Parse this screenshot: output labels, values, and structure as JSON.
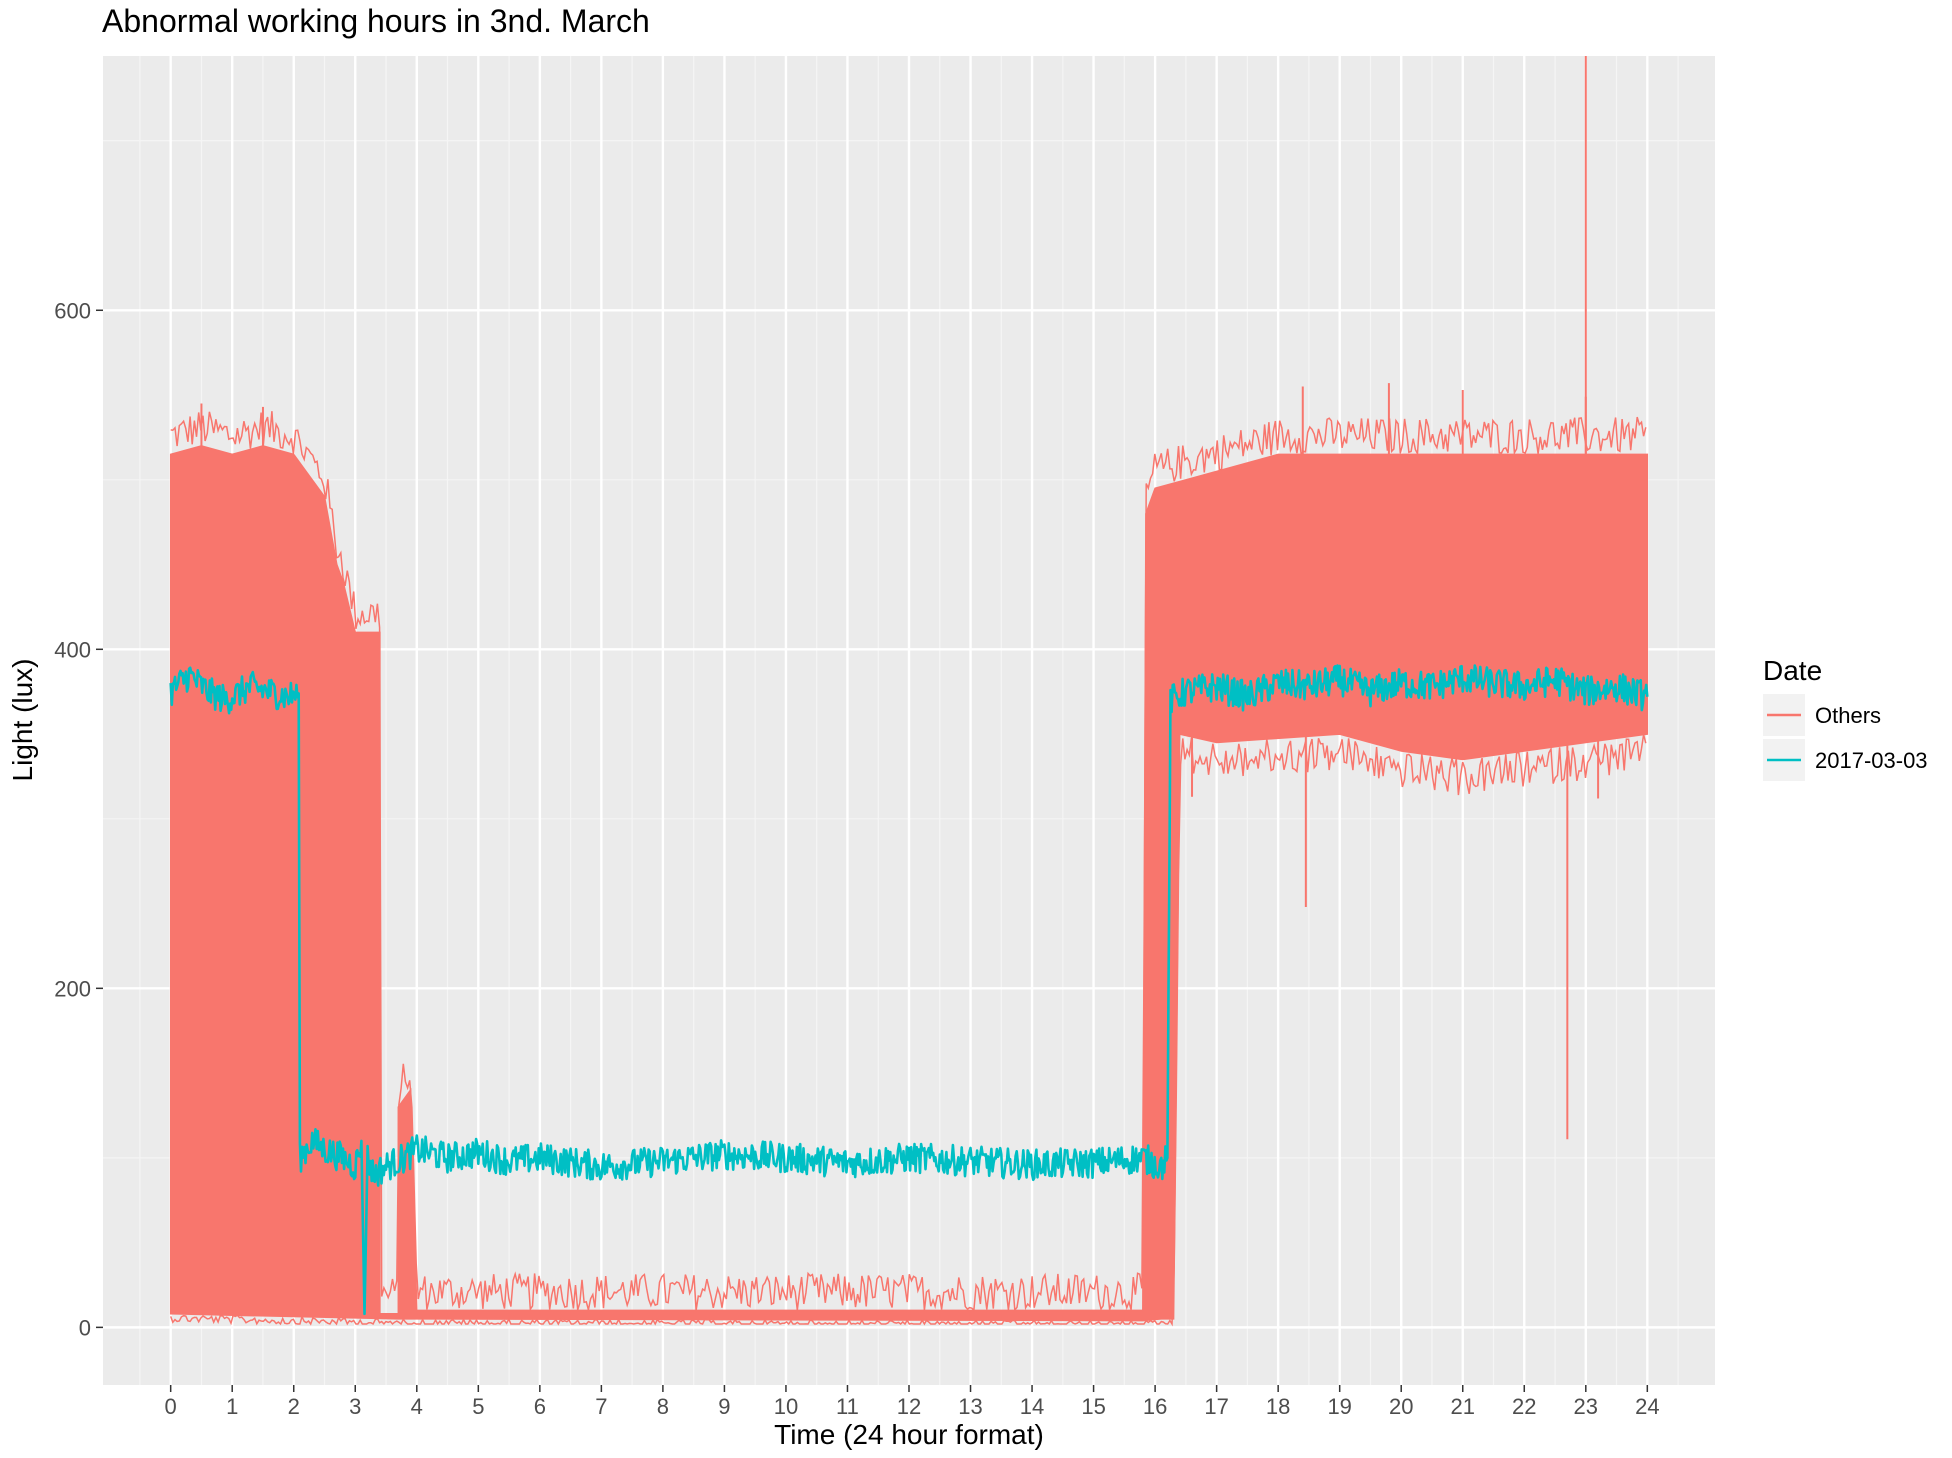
{
  "chart_data": {
    "type": "line",
    "title": "Abnormal working hours in 3nd. March",
    "xlabel": "Time (24 hour format)",
    "ylabel": "Light (lux)",
    "xlim": [
      -1.1,
      25.1
    ],
    "ylim": [
      -34,
      750
    ],
    "x_ticks": [
      0,
      1,
      2,
      3,
      4,
      5,
      6,
      7,
      8,
      9,
      10,
      11,
      12,
      13,
      14,
      15,
      16,
      17,
      18,
      19,
      20,
      21,
      22,
      23,
      24
    ],
    "x_tick_labels": [
      "0",
      "1",
      "2",
      "3",
      "4",
      "5",
      "6",
      "7",
      "8",
      "9",
      "10",
      "11",
      "12",
      "13",
      "14",
      "15",
      "16",
      "17",
      "18",
      "19",
      "20",
      "21",
      "22",
      "23",
      "24"
    ],
    "y_ticks": [
      0,
      200,
      400,
      600
    ],
    "y_tick_labels": [
      "0",
      "200",
      "400",
      "600"
    ],
    "grid": true,
    "legend": {
      "title": "Date",
      "placement": "right",
      "entries": [
        {
          "label": "Others",
          "color": "#f8766d"
        },
        {
          "label": "2017-03-03",
          "color": "#00bfc4"
        }
      ]
    },
    "series": [
      {
        "name": "Others",
        "color": "#f8766d",
        "render": "band",
        "upper": [
          [
            0.0,
            515
          ],
          [
            0.5,
            520
          ],
          [
            1.0,
            515
          ],
          [
            1.5,
            520
          ],
          [
            2.0,
            515
          ],
          [
            2.3,
            500
          ],
          [
            2.5,
            490
          ],
          [
            2.7,
            450
          ],
          [
            2.8,
            440
          ],
          [
            3.0,
            410
          ],
          [
            3.4,
            410
          ],
          [
            3.4,
            8
          ],
          [
            3.7,
            8
          ],
          [
            3.7,
            130
          ],
          [
            3.9,
            140
          ],
          [
            4.0,
            10
          ],
          [
            15.8,
            10
          ],
          [
            15.85,
            480
          ],
          [
            16.0,
            495
          ],
          [
            16.5,
            500
          ],
          [
            18.0,
            515
          ],
          [
            20.0,
            515
          ],
          [
            22.0,
            515
          ],
          [
            24.0,
            515
          ]
        ],
        "lower": [
          [
            0.0,
            8
          ],
          [
            3.7,
            5
          ],
          [
            4.0,
            5
          ],
          [
            15.8,
            4
          ],
          [
            16.1,
            5
          ],
          [
            16.3,
            5
          ],
          [
            16.4,
            350
          ],
          [
            17.0,
            345
          ],
          [
            19.0,
            350
          ],
          [
            20.0,
            340
          ],
          [
            21.0,
            335
          ],
          [
            22.0,
            340
          ],
          [
            23.0,
            345
          ],
          [
            24.0,
            350
          ]
        ],
        "spikes": [
          {
            "x": 23.0,
            "y": 750
          },
          {
            "x": 22.7,
            "y": 111
          },
          {
            "x": 18.45,
            "y": 248
          },
          {
            "x": 16.6,
            "y": 313
          },
          {
            "x": 23.2,
            "y": 312
          },
          {
            "x": 0.5,
            "y": 545
          },
          {
            "x": 1.5,
            "y": 543
          },
          {
            "x": 18.4,
            "y": 555
          },
          {
            "x": 19.8,
            "y": 557
          },
          {
            "x": 21.0,
            "y": 553
          },
          {
            "x": 23.0,
            "y": 549
          }
        ]
      },
      {
        "name": "2017-03-03",
        "color": "#00bfc4",
        "render": "line",
        "points": [
          [
            0.0,
            375
          ],
          [
            0.3,
            385
          ],
          [
            0.6,
            375
          ],
          [
            0.9,
            370
          ],
          [
            1.0,
            372
          ],
          [
            1.3,
            378
          ],
          [
            1.6,
            375
          ],
          [
            1.9,
            372
          ],
          [
            2.08,
            374
          ],
          [
            2.1,
            100
          ],
          [
            2.3,
            110
          ],
          [
            2.5,
            105
          ],
          [
            2.8,
            100
          ],
          [
            3.0,
            95
          ],
          [
            3.1,
            110
          ],
          [
            3.15,
            8
          ],
          [
            3.2,
            100
          ],
          [
            3.3,
            90
          ],
          [
            3.5,
            95
          ],
          [
            3.8,
            100
          ],
          [
            4.0,
            105
          ],
          [
            4.5,
            100
          ],
          [
            5.0,
            103
          ],
          [
            5.5,
            98
          ],
          [
            6.0,
            100
          ],
          [
            7.0,
            95
          ],
          [
            8.0,
            98
          ],
          [
            9.0,
            102
          ],
          [
            10.0,
            100
          ],
          [
            11.0,
            97
          ],
          [
            12.0,
            100
          ],
          [
            13.0,
            98
          ],
          [
            14.0,
            96
          ],
          [
            15.0,
            97
          ],
          [
            15.8,
            100
          ],
          [
            16.1,
            95
          ],
          [
            16.2,
            100
          ],
          [
            16.25,
            370
          ],
          [
            16.5,
            375
          ],
          [
            17.0,
            378
          ],
          [
            17.5,
            372
          ],
          [
            18.0,
            380
          ],
          [
            18.5,
            378
          ],
          [
            19.0,
            382
          ],
          [
            19.5,
            375
          ],
          [
            20.0,
            380
          ],
          [
            20.5,
            378
          ],
          [
            21.0,
            383
          ],
          [
            21.5,
            380
          ],
          [
            22.0,
            378
          ],
          [
            22.5,
            382
          ],
          [
            23.0,
            375
          ],
          [
            23.5,
            378
          ],
          [
            24.0,
            372
          ]
        ]
      }
    ]
  }
}
